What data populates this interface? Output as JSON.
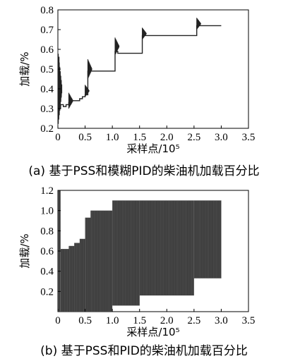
{
  "chart_data": [
    {
      "type": "line",
      "caption": "(a) 基于PSS和模糊PID的柴油机加载百分比",
      "xlabel": "采样点/10⁵",
      "ylabel": "加载/%",
      "xlim": [
        0,
        3.5
      ],
      "ylim": [
        0.2,
        0.8
      ],
      "xticks": [
        "0",
        "0.5",
        "1.0",
        "1.5",
        "2.0",
        "2.5",
        "3.0",
        "3.5"
      ],
      "yticks": [
        "0.2",
        "0.3",
        "0.4",
        "0.5",
        "0.6",
        "0.7",
        "0.8"
      ],
      "grid": false,
      "line_color": "#222222",
      "series": [
        {
          "x": [
            0,
            0.02,
            0.05,
            0.1,
            0.15,
            0.2,
            0.25,
            0.3,
            0.35,
            0.4,
            0.45,
            0.5,
            0.55,
            0.6,
            0.7,
            0.8,
            0.9,
            1.0,
            1.05,
            1.1,
            1.2,
            1.3,
            1.4,
            1.5,
            1.55,
            1.6,
            1.8,
            2.0,
            2.2,
            2.4,
            2.5,
            2.55,
            2.6,
            2.8,
            3.0
          ],
          "y": [
            0.56,
            0.3,
            0.32,
            0.31,
            0.32,
            0.33,
            0.34,
            0.34,
            0.34,
            0.35,
            0.36,
            0.37,
            0.49,
            0.49,
            0.49,
            0.49,
            0.49,
            0.49,
            0.59,
            0.58,
            0.58,
            0.58,
            0.58,
            0.58,
            0.67,
            0.67,
            0.67,
            0.67,
            0.67,
            0.67,
            0.67,
            0.72,
            0.72,
            0.72,
            0.72
          ]
        }
      ],
      "oscillations": [
        {
          "x": 0.0,
          "top": 0.6,
          "bottom": 0.2
        },
        {
          "x": 0.2,
          "top": 0.38,
          "bottom": 0.3
        },
        {
          "x": 0.5,
          "top": 0.42,
          "bottom": 0.36
        },
        {
          "x": 0.55,
          "top": 0.55,
          "bottom": 0.45
        },
        {
          "x": 1.05,
          "top": 0.66,
          "bottom": 0.57
        },
        {
          "x": 1.55,
          "top": 0.71,
          "bottom": 0.65
        },
        {
          "x": 2.55,
          "top": 0.76,
          "bottom": 0.7
        }
      ]
    },
    {
      "type": "area",
      "caption": "(b) 基于PSS和PID的柴油机加载百分比",
      "xlabel": "采样点/10⁵",
      "ylabel": "加载/%",
      "xlim": [
        0,
        3.5
      ],
      "ylim": [
        0,
        1.2
      ],
      "xticks": [
        "0",
        "0.5",
        "1.0",
        "1.5",
        "2.0",
        "2.5",
        "3.0",
        "3.5"
      ],
      "yticks": [
        "0.2",
        "0.4",
        "0.6",
        "0.8",
        "1.0",
        "1.2"
      ],
      "grid": false,
      "fill_color": "#3a3a3a",
      "bands": [
        {
          "x0": 0.0,
          "x1": 0.05,
          "top": 1.2,
          "bottom": 0.0
        },
        {
          "x0": 0.05,
          "x1": 0.2,
          "top": 0.62,
          "bottom": 0.0
        },
        {
          "x0": 0.2,
          "x1": 0.3,
          "top": 0.65,
          "bottom": 0.0
        },
        {
          "x0": 0.3,
          "x1": 0.4,
          "top": 0.68,
          "bottom": 0.0
        },
        {
          "x0": 0.4,
          "x1": 0.5,
          "top": 0.72,
          "bottom": 0.0
        },
        {
          "x0": 0.5,
          "x1": 0.6,
          "top": 0.93,
          "bottom": 0.0
        },
        {
          "x0": 0.6,
          "x1": 1.0,
          "top": 1.0,
          "bottom": 0.0
        },
        {
          "x0": 1.0,
          "x1": 1.5,
          "top": 1.1,
          "bottom": 0.06
        },
        {
          "x0": 1.5,
          "x1": 2.5,
          "top": 1.1,
          "bottom": 0.16
        },
        {
          "x0": 2.5,
          "x1": 3.0,
          "top": 1.1,
          "bottom": 0.33
        }
      ]
    }
  ]
}
